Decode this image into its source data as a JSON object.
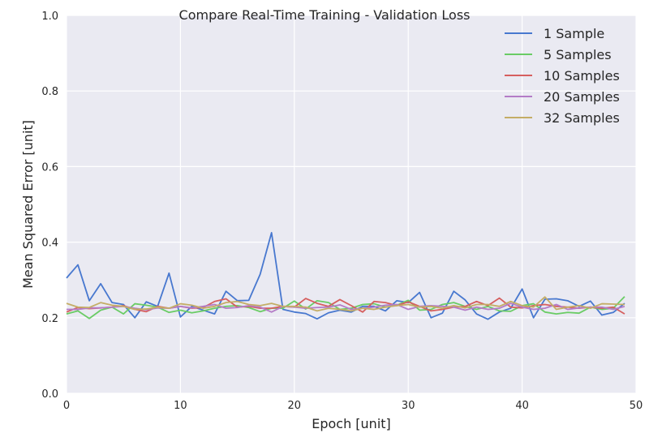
{
  "chart_data": {
    "type": "line",
    "title": "Compare Real-Time Training - Validation Loss",
    "xlabel": "Epoch [unit]",
    "ylabel": "Mean Squared Error [unit]",
    "xlim": [
      0,
      50
    ],
    "ylim": [
      0.0,
      1.0
    ],
    "xticks": [
      0,
      10,
      20,
      30,
      40,
      50
    ],
    "yticks": [
      0.0,
      0.2,
      0.4,
      0.6,
      0.8,
      1.0
    ],
    "xtick_labels": [
      "0",
      "10",
      "20",
      "30",
      "40",
      "50"
    ],
    "ytick_labels": [
      "0.0",
      "0.2",
      "0.4",
      "0.6",
      "0.8",
      "1.0"
    ],
    "grid": true,
    "legend_position": "top-right",
    "x": [
      0,
      1,
      2,
      3,
      4,
      5,
      6,
      7,
      8,
      9,
      10,
      11,
      12,
      13,
      14,
      15,
      16,
      17,
      18,
      19,
      20,
      21,
      22,
      23,
      24,
      25,
      26,
      27,
      28,
      29,
      30,
      31,
      32,
      33,
      34,
      35,
      36,
      37,
      38,
      39,
      40,
      41,
      42,
      43,
      44,
      45,
      46,
      47,
      48,
      49
    ],
    "series": [
      {
        "name": "1 Sample",
        "color": "#4878cf",
        "values": [
          0.305,
          0.34,
          0.245,
          0.29,
          0.24,
          0.235,
          0.2,
          0.242,
          0.23,
          0.318,
          0.202,
          0.23,
          0.22,
          0.21,
          0.27,
          0.245,
          0.246,
          0.315,
          0.425,
          0.222,
          0.215,
          0.211,
          0.197,
          0.213,
          0.22,
          0.215,
          0.23,
          0.23,
          0.218,
          0.245,
          0.24,
          0.267,
          0.2,
          0.212,
          0.27,
          0.247,
          0.21,
          0.196,
          0.215,
          0.225,
          0.276,
          0.2,
          0.249,
          0.25,
          0.245,
          0.23,
          0.244,
          0.207,
          0.214,
          0.238
        ]
      },
      {
        "name": "5 Samples",
        "color": "#6acc65",
        "values": [
          0.21,
          0.218,
          0.198,
          0.22,
          0.228,
          0.21,
          0.237,
          0.233,
          0.228,
          0.214,
          0.22,
          0.213,
          0.218,
          0.225,
          0.23,
          0.232,
          0.227,
          0.216,
          0.225,
          0.225,
          0.244,
          0.223,
          0.245,
          0.24,
          0.222,
          0.225,
          0.235,
          0.237,
          0.228,
          0.233,
          0.246,
          0.22,
          0.222,
          0.235,
          0.24,
          0.23,
          0.222,
          0.23,
          0.218,
          0.217,
          0.232,
          0.237,
          0.215,
          0.21,
          0.214,
          0.212,
          0.228,
          0.222,
          0.225,
          0.256
        ]
      },
      {
        "name": "10 Samples",
        "color": "#d65f5f",
        "values": [
          0.215,
          0.227,
          0.224,
          0.226,
          0.228,
          0.232,
          0.222,
          0.216,
          0.23,
          0.225,
          0.23,
          0.225,
          0.227,
          0.243,
          0.25,
          0.228,
          0.23,
          0.225,
          0.225,
          0.23,
          0.228,
          0.251,
          0.238,
          0.23,
          0.248,
          0.232,
          0.215,
          0.243,
          0.24,
          0.232,
          0.242,
          0.23,
          0.218,
          0.222,
          0.228,
          0.23,
          0.243,
          0.232,
          0.252,
          0.228,
          0.226,
          0.232,
          0.235,
          0.23,
          0.228,
          0.225,
          0.228,
          0.225,
          0.228,
          0.21
        ]
      },
      {
        "name": "20 Samples",
        "color": "#b47cc7",
        "values": [
          0.222,
          0.222,
          0.226,
          0.226,
          0.228,
          0.23,
          0.225,
          0.221,
          0.226,
          0.225,
          0.23,
          0.226,
          0.23,
          0.235,
          0.225,
          0.227,
          0.232,
          0.228,
          0.215,
          0.23,
          0.228,
          0.225,
          0.227,
          0.228,
          0.234,
          0.222,
          0.225,
          0.228,
          0.233,
          0.235,
          0.222,
          0.23,
          0.232,
          0.23,
          0.228,
          0.22,
          0.228,
          0.222,
          0.225,
          0.238,
          0.228,
          0.222,
          0.225,
          0.235,
          0.222,
          0.226,
          0.228,
          0.228,
          0.222,
          0.23
        ]
      },
      {
        "name": "32 Samples",
        "color": "#c4ad66",
        "values": [
          0.238,
          0.228,
          0.227,
          0.24,
          0.233,
          0.23,
          0.222,
          0.223,
          0.228,
          0.225,
          0.237,
          0.233,
          0.225,
          0.23,
          0.24,
          0.243,
          0.235,
          0.232,
          0.238,
          0.23,
          0.23,
          0.228,
          0.218,
          0.225,
          0.222,
          0.218,
          0.225,
          0.222,
          0.228,
          0.232,
          0.235,
          0.228,
          0.23,
          0.225,
          0.232,
          0.226,
          0.235,
          0.235,
          0.23,
          0.243,
          0.232,
          0.228,
          0.255,
          0.222,
          0.228,
          0.232,
          0.225,
          0.237,
          0.236,
          0.235
        ]
      }
    ]
  }
}
